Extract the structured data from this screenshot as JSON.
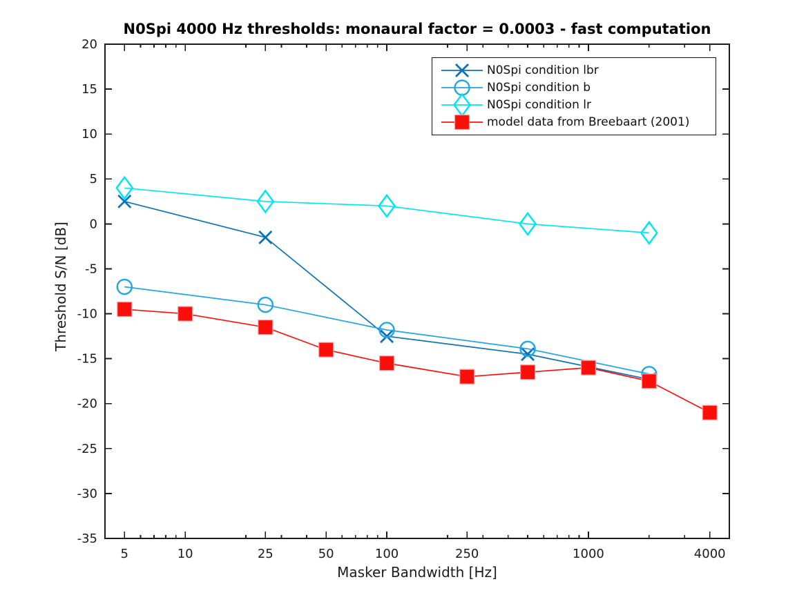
{
  "chart_data": {
    "type": "line",
    "title": "N0Spi 4000 Hz thresholds: monaural factor = 0.0003 - fast computation",
    "xlabel": "Masker Bandwidth [Hz]",
    "ylabel": "Threshold S/N [dB]",
    "x_scale": "log",
    "xlim": [
      4,
      5000
    ],
    "ylim": [
      -35,
      20
    ],
    "x_major_ticks": [
      5,
      10,
      25,
      50,
      100,
      250,
      1000,
      4000
    ],
    "x_minor_ticks": [
      6,
      7,
      8,
      9,
      20,
      30,
      40,
      60,
      70,
      80,
      90,
      200,
      300,
      400,
      500,
      600,
      700,
      800,
      900,
      2000,
      3000
    ],
    "y_ticks": [
      20,
      15,
      10,
      5,
      0,
      -5,
      -10,
      -15,
      -20,
      -25,
      -30,
      -35
    ],
    "grid": false,
    "legend_position": "top-right-inside",
    "axis_color": "#1a1a1a",
    "series": [
      {
        "id": "n0spi-condition-lbr",
        "name": "N0Spi condition lbr",
        "marker": "x",
        "color": "#0b72b9",
        "x": [
          5,
          25,
          100,
          500,
          2000
        ],
        "y": [
          2.5,
          -1.5,
          -12.5,
          -14.5,
          -17.3
        ]
      },
      {
        "id": "n0spi-condition-b",
        "name": "N0Spi condition b",
        "marker": "circle",
        "color": "#1ea5e8",
        "x": [
          5,
          25,
          100,
          500,
          2000
        ],
        "y": [
          -7,
          -9,
          -11.8,
          -13.9,
          -16.7
        ]
      },
      {
        "id": "n0spi-condition-lr",
        "name": "N0Spi condition lr",
        "marker": "diamond",
        "color": "#00e6f0",
        "x": [
          5,
          25,
          100,
          500,
          2000
        ],
        "y": [
          4,
          2.5,
          2,
          0,
          -1
        ]
      },
      {
        "id": "model-data-breebaart-2001",
        "name": "model data from Breebaart (2001)",
        "marker": "filled-square",
        "color": "#fb0f0b",
        "square_edge_color": "#ff9e9e",
        "x": [
          5,
          10,
          25,
          50,
          100,
          250,
          500,
          1000,
          2000,
          4000
        ],
        "y": [
          -9.5,
          -10,
          -11.5,
          -14,
          -15.5,
          -17,
          -16.5,
          -16,
          -17.5,
          -21
        ]
      }
    ]
  }
}
